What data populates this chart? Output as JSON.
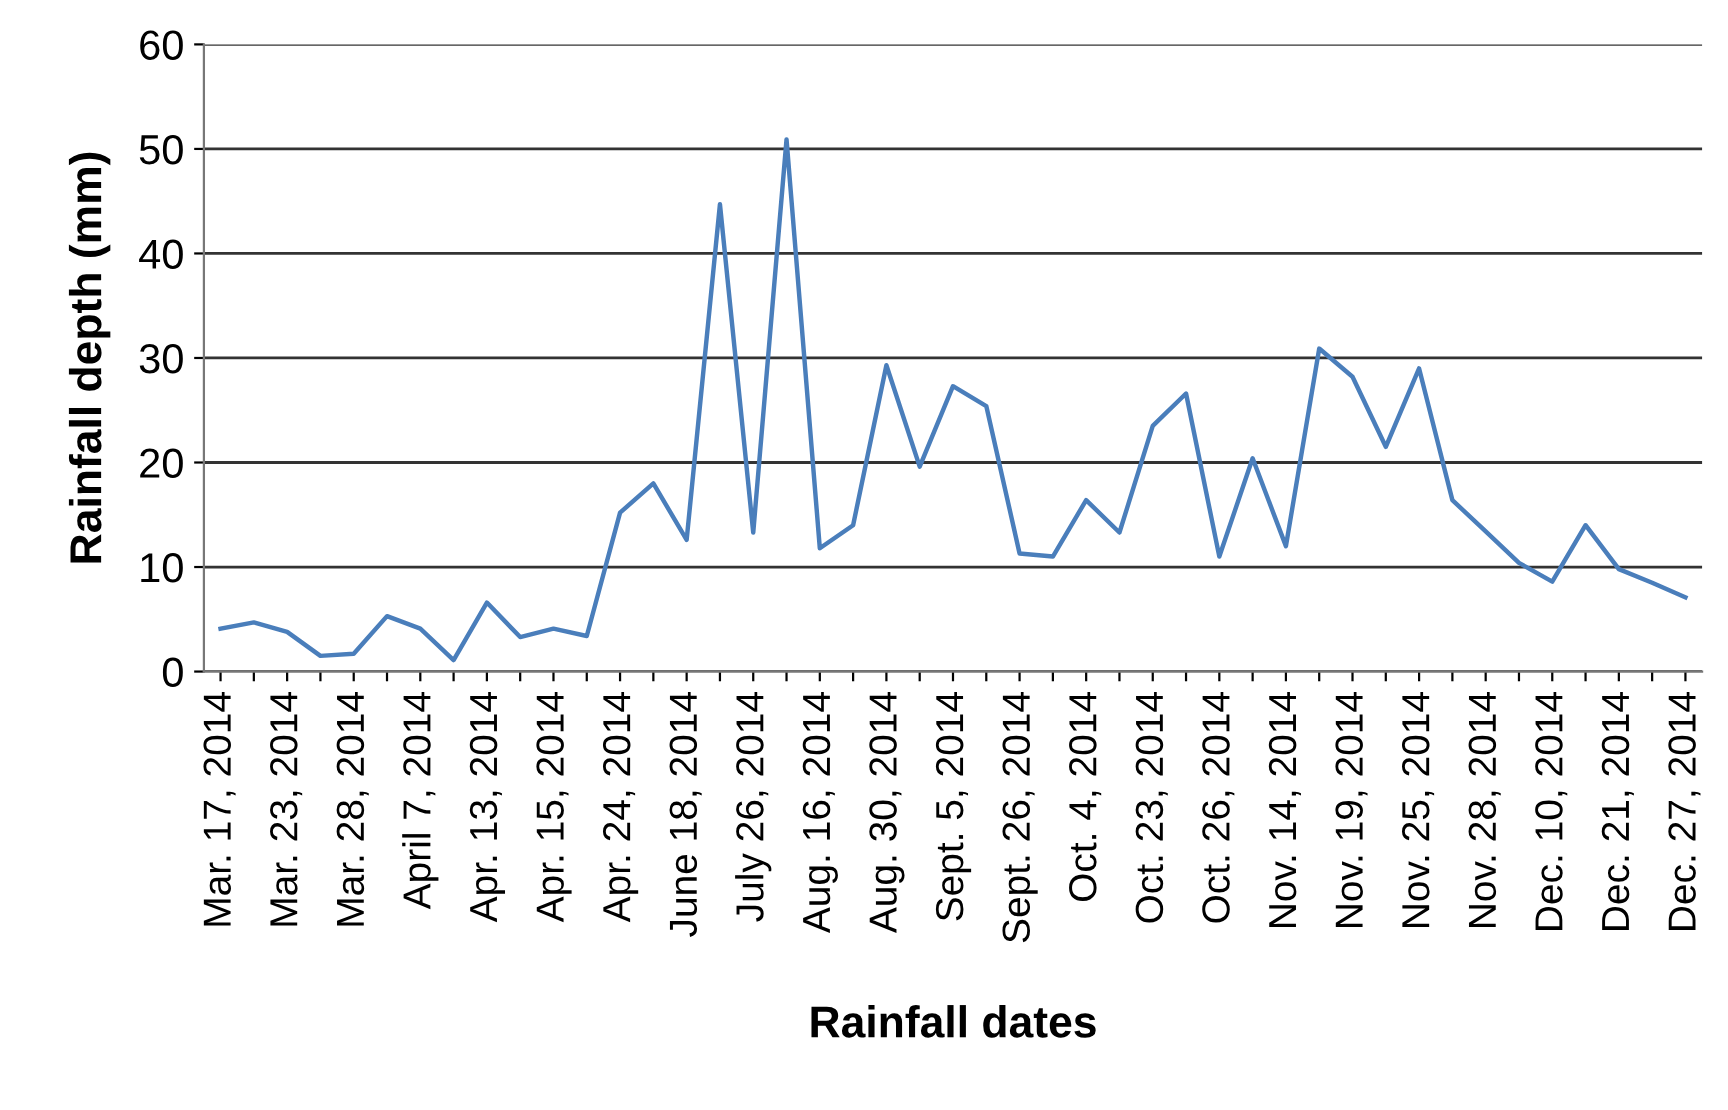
{
  "chart_data": {
    "type": "line",
    "xlabel": "Rainfall dates",
    "ylabel": "Rainfall depth (mm)",
    "categories": [
      "Mar. 17, 2014",
      null,
      "Mar. 23, 2014",
      null,
      "Mar. 28, 2014",
      null,
      "April 7, 2014",
      null,
      "Apr. 13, 2014",
      null,
      "Apr. 15, 2014",
      null,
      "Apr. 24, 2014",
      null,
      "June 18, 2014",
      null,
      "July 26, 2014",
      null,
      "Aug. 16, 2014",
      null,
      "Aug. 30, 2014",
      null,
      "Sept. 5, 2014",
      null,
      "Sept. 26, 2014",
      null,
      "Oct. 4, 2014",
      null,
      "Oct. 23, 2014",
      null,
      "Oct. 26, 2014",
      null,
      "Nov. 14, 2014",
      null,
      "Nov. 19, 2014",
      null,
      "Nov. 25, 2014",
      null,
      "Nov. 28, 2014",
      null,
      "Dec. 10, 2014",
      null,
      "Dec. 21, 2014",
      null,
      "Dec. 27, 2014"
    ],
    "series": [
      {
        "color": "#4a7ebb",
        "values": [
          4.1,
          4.7,
          3.8,
          1.5,
          1.7,
          5.3,
          4.1,
          1.1,
          6.6,
          3.3,
          4.1,
          3.4,
          15.2,
          18.0,
          12.6,
          44.7,
          13.3,
          50.9,
          11.8,
          14.0,
          29.3,
          19.6,
          27.3,
          25.4,
          11.3,
          11.0,
          16.4,
          13.3,
          23.5,
          26.6,
          11.0,
          20.4,
          12.0,
          30.9,
          28.2,
          21.5,
          29.0,
          16.4,
          13.4,
          10.4,
          8.6,
          14.0,
          9.8,
          8.5,
          7.1
        ]
      }
    ],
    "ylim": [
      0,
      60
    ],
    "yticks": [
      0,
      10,
      20,
      30,
      40,
      50,
      60
    ],
    "grid": "y",
    "marker": "none",
    "line_style": "solid",
    "legend": false
  }
}
